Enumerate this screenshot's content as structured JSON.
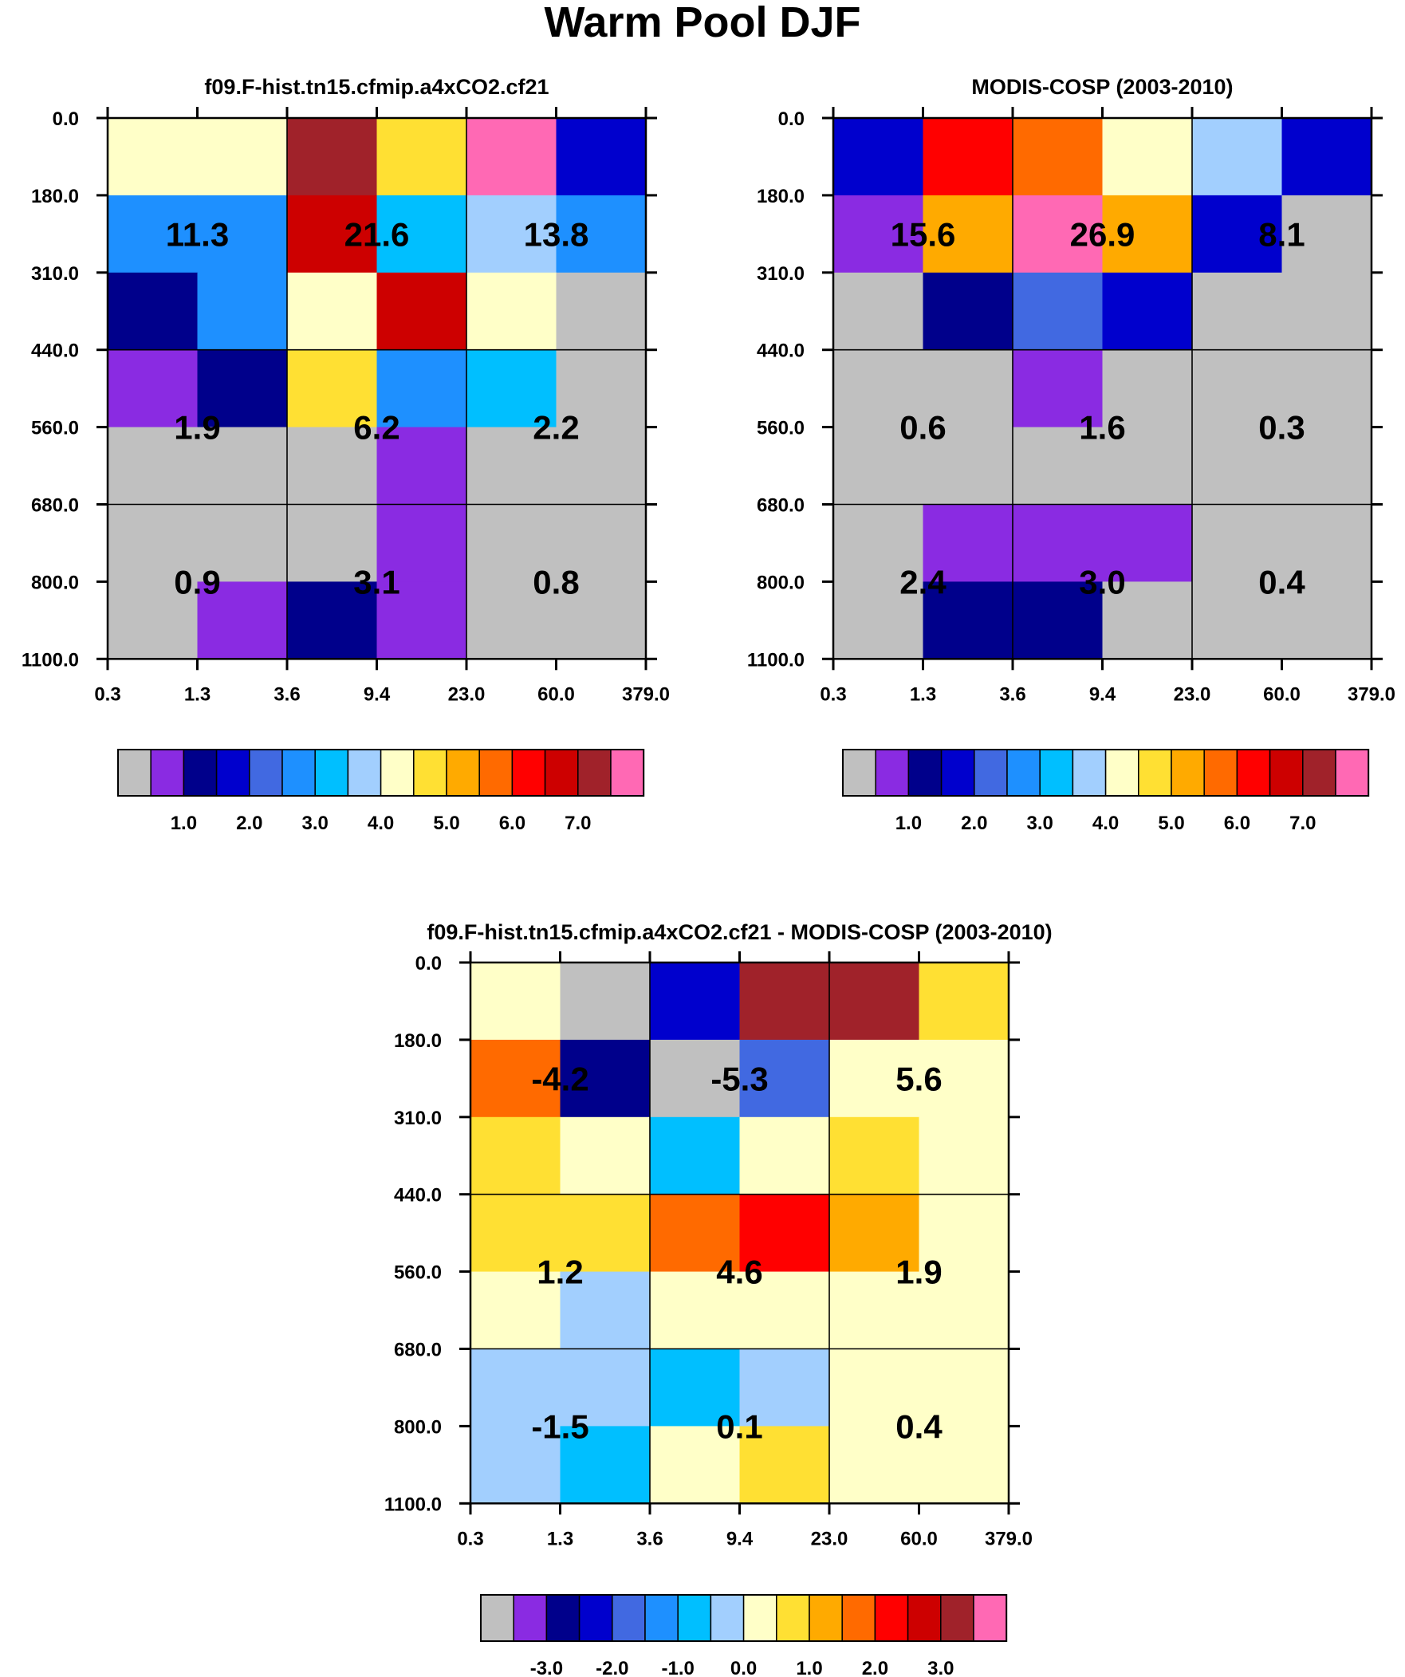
{
  "figure_title": "Warm Pool DJF",
  "palette": {
    "seq": [
      "#c0c0c0",
      "#8a2be2",
      "#00008b",
      "#0000cd",
      "#4169e1",
      "#1e90ff",
      "#00bfff",
      "#a2cffe",
      "#ffffc8",
      "#ffe033",
      "#ffaa00",
      "#ff6a00",
      "#ff0000",
      "#cd0000",
      "#a0222a",
      "#ff69b4"
    ],
    "div": [
      "#c0c0c0",
      "#8a2be2",
      "#00008b",
      "#0000cd",
      "#4169e1",
      "#1e90ff",
      "#00bfff",
      "#a2cffe",
      "#ffffc8",
      "#ffe033",
      "#ffaa00",
      "#ff6a00",
      "#ff0000",
      "#cd0000",
      "#a0222a",
      "#ff69b4"
    ]
  },
  "chart_data": [
    {
      "type": "heatmap",
      "title": "f09.F-hist.tn15.cfmip.a4xCO2.cf21",
      "x_ticks": [
        "0.3",
        "1.3",
        "3.6",
        "9.4",
        "23.0",
        "60.0",
        "379.0"
      ],
      "y_ticks": [
        "0.0",
        "180.0",
        "310.0",
        "440.0",
        "560.0",
        "680.0",
        "800.0",
        "1100.0"
      ],
      "cells": [
        [
          8,
          8,
          14,
          9,
          15,
          3
        ],
        [
          5,
          5,
          13,
          6,
          7,
          5
        ],
        [
          2,
          5,
          8,
          13,
          8,
          0
        ],
        [
          1,
          2,
          9,
          5,
          6,
          0
        ],
        [
          0,
          0,
          0,
          1,
          0,
          0
        ],
        [
          0,
          0,
          0,
          1,
          0,
          0
        ],
        [
          0,
          1,
          2,
          1,
          0,
          0
        ]
      ],
      "cells_note": "color index per cell (row = pressure band top to bottom, col = optical depth bin); index into palette.seq",
      "cell_summaries": [
        [
          "11.3",
          "21.6",
          "13.8"
        ],
        [
          "1.9",
          "6.2",
          "2.2"
        ],
        [
          "0.9",
          "3.1",
          "0.8"
        ]
      ],
      "colorbar": {
        "palette": "seq",
        "labels": [
          "1.0",
          "2.0",
          "3.0",
          "4.0",
          "5.0",
          "6.0",
          "7.0"
        ]
      }
    },
    {
      "type": "heatmap",
      "title": "MODIS-COSP (2003-2010)",
      "x_ticks": [
        "0.3",
        "1.3",
        "3.6",
        "9.4",
        "23.0",
        "60.0",
        "379.0"
      ],
      "y_ticks": [
        "0.0",
        "180.0",
        "310.0",
        "440.0",
        "560.0",
        "680.0",
        "800.0",
        "1100.0"
      ],
      "cells": [
        [
          3,
          12,
          11,
          8,
          7,
          3
        ],
        [
          1,
          10,
          15,
          10,
          3,
          0
        ],
        [
          0,
          2,
          4,
          3,
          0,
          0
        ],
        [
          0,
          0,
          1,
          0,
          0,
          0
        ],
        [
          0,
          0,
          0,
          0,
          0,
          0
        ],
        [
          0,
          1,
          1,
          1,
          0,
          0
        ],
        [
          0,
          2,
          2,
          0,
          0,
          0
        ]
      ],
      "cells_note": "color index per cell; index into palette.seq",
      "cell_summaries": [
        [
          "15.6",
          "26.9",
          "8.1"
        ],
        [
          "0.6",
          "1.6",
          "0.3"
        ],
        [
          "2.4",
          "3.0",
          "0.4"
        ]
      ],
      "colorbar": {
        "palette": "seq",
        "labels": [
          "1.0",
          "2.0",
          "3.0",
          "4.0",
          "5.0",
          "6.0",
          "7.0"
        ]
      }
    },
    {
      "type": "heatmap",
      "title": "f09.F-hist.tn15.cfmip.a4xCO2.cf21 - MODIS-COSP (2003-2010)",
      "x_ticks": [
        "0.3",
        "1.3",
        "3.6",
        "9.4",
        "23.0",
        "60.0",
        "379.0"
      ],
      "y_ticks": [
        "0.0",
        "180.0",
        "310.0",
        "440.0",
        "560.0",
        "680.0",
        "800.0",
        "1100.0"
      ],
      "cells": [
        [
          8,
          0,
          3,
          14,
          14,
          9
        ],
        [
          11,
          2,
          0,
          4,
          8,
          8
        ],
        [
          9,
          8,
          6,
          8,
          9,
          8
        ],
        [
          9,
          9,
          11,
          12,
          10,
          8
        ],
        [
          8,
          7,
          8,
          8,
          8,
          8
        ],
        [
          7,
          7,
          6,
          7,
          8,
          8
        ],
        [
          7,
          6,
          8,
          9,
          8,
          8
        ]
      ],
      "cells_note": "color index per cell; index into palette.div",
      "cell_summaries": [
        [
          "-4.2",
          "-5.3",
          "5.6"
        ],
        [
          "1.2",
          "4.6",
          "1.9"
        ],
        [
          "-1.5",
          "0.1",
          "0.4"
        ]
      ],
      "colorbar": {
        "palette": "div",
        "labels": [
          "-3.0",
          "-2.0",
          "-1.0",
          "0.0",
          "1.0",
          "2.0",
          "3.0"
        ]
      }
    }
  ]
}
